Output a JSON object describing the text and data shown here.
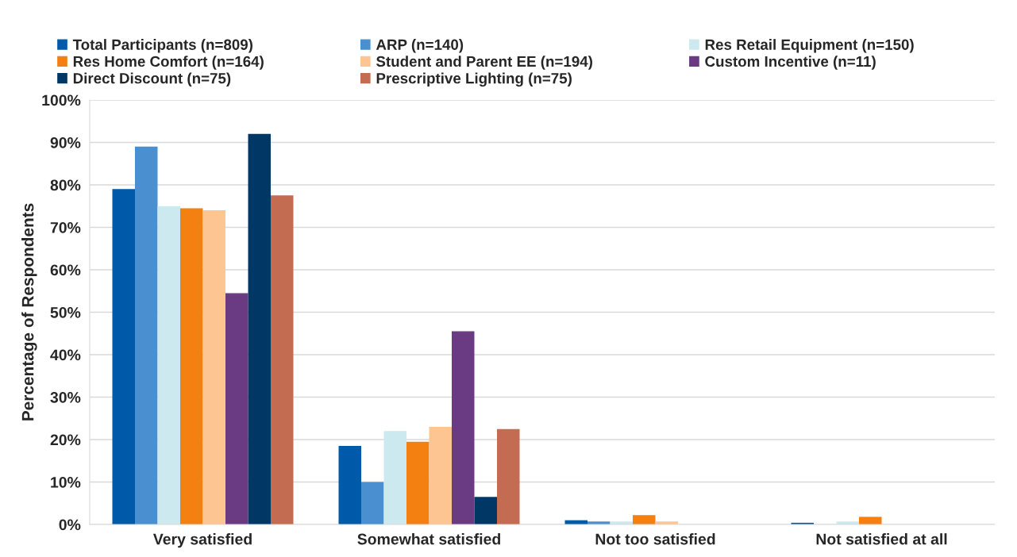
{
  "chart_data": {
    "type": "bar",
    "ylabel": "Percentage of Respondents",
    "categories": [
      "Very satisfied",
      "Somewhat satisfied",
      "Not too satisfied",
      "Not satisfied at all"
    ],
    "series": [
      {
        "name": "Total Participants (n=809)",
        "color": "#005aaa",
        "values": [
          79,
          18.5,
          1.0,
          0.4
        ]
      },
      {
        "name": "ARP (n=140)",
        "color": "#4a90d0",
        "values": [
          89,
          10,
          0.7,
          0
        ]
      },
      {
        "name": "Res Retail Equipment (n=150)",
        "color": "#cde9f0",
        "values": [
          75,
          22,
          0.7,
          0.7
        ]
      },
      {
        "name": "Res Home Comfort (n=164)",
        "color": "#f38010",
        "values": [
          74.5,
          19.5,
          2.2,
          1.8
        ]
      },
      {
        "name": "Student and Parent EE (n=194)",
        "color": "#fdc592",
        "values": [
          74,
          23,
          0.7,
          0
        ]
      },
      {
        "name": "Custom Incentive (n=11)",
        "color": "#6a3a82",
        "values": [
          54.5,
          45.5,
          0,
          0
        ]
      },
      {
        "name": "Direct Discount (n=75)",
        "color": "#003764",
        "values": [
          92,
          6.5,
          0,
          0
        ]
      },
      {
        "name": "Prescriptive Lighting (n=75)",
        "color": "#c46c52",
        "values": [
          77.5,
          22.5,
          0,
          0
        ]
      }
    ],
    "ylim": [
      0,
      100
    ],
    "yticks": [
      {
        "value": 0,
        "label": "0%"
      },
      {
        "value": 10,
        "label": "10%"
      },
      {
        "value": 20,
        "label": "20%"
      },
      {
        "value": 30,
        "label": "30%"
      },
      {
        "value": 40,
        "label": "40%"
      },
      {
        "value": 50,
        "label": "50%"
      },
      {
        "value": 60,
        "label": "60%"
      },
      {
        "value": 70,
        "label": "70%"
      },
      {
        "value": 80,
        "label": "80%"
      },
      {
        "value": 90,
        "label": "90%"
      },
      {
        "value": 100,
        "label": "100%"
      }
    ],
    "grid": "y",
    "legend": "top"
  }
}
